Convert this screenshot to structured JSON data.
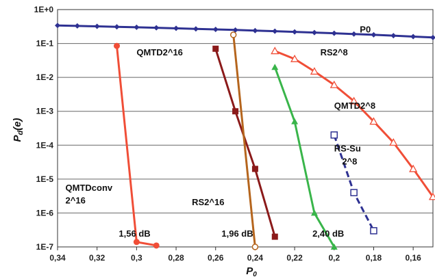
{
  "chart_data": {
    "type": "line",
    "xlabel": "P0",
    "ylabel": "Pd(e)",
    "xlim": [
      0.34,
      0.15
    ],
    "x_reversed": true,
    "ylim": [
      1e-07,
      1
    ],
    "yscale": "log",
    "grid": "horizontal",
    "x_ticks": [
      "0,34",
      "0,32",
      "0,3",
      "0,28",
      "0,26",
      "0,24",
      "0,22",
      "0,2",
      "0,18",
      "0,16"
    ],
    "x_tick_values": [
      0.34,
      0.32,
      0.3,
      0.28,
      0.26,
      0.24,
      0.22,
      0.2,
      0.18,
      0.16
    ],
    "y_ticks": [
      "1E+0",
      "1E-1",
      "1E-2",
      "1E-3",
      "1E-4",
      "1E-5",
      "1E-6",
      "1E-7"
    ],
    "y_tick_values": [
      1,
      0.1,
      0.01,
      0.001,
      0.0001,
      1e-05,
      1e-06,
      1e-07
    ],
    "series": [
      {
        "name": "P0",
        "color": "#2e3192",
        "marker": "diamond",
        "dash": "solid",
        "x": [
          0.34,
          0.33,
          0.32,
          0.31,
          0.3,
          0.29,
          0.28,
          0.27,
          0.26,
          0.25,
          0.24,
          0.23,
          0.22,
          0.21,
          0.2,
          0.19,
          0.18,
          0.17,
          0.16,
          0.15
        ],
        "y": [
          0.34,
          0.33,
          0.32,
          0.31,
          0.3,
          0.29,
          0.28,
          0.27,
          0.26,
          0.25,
          0.24,
          0.23,
          0.22,
          0.21,
          0.2,
          0.19,
          0.18,
          0.17,
          0.16,
          0.15
        ]
      },
      {
        "name": "QMTDconv 2^16",
        "color": "#f04e37",
        "marker": "circle",
        "dash": "solid",
        "x": [
          0.31,
          0.3,
          0.29
        ],
        "y": [
          0.085,
          1.4e-07,
          1.1e-07
        ]
      },
      {
        "name": "QMTD2^16",
        "color": "#8b1a1a",
        "marker": "square",
        "dash": "solid",
        "x": [
          0.26,
          0.25,
          0.24,
          0.23
        ],
        "y": [
          0.07,
          0.001,
          2e-05,
          2e-07
        ]
      },
      {
        "name": "RS2^16",
        "color": "#b5651d",
        "marker": "open-circle",
        "dash": "solid",
        "x": [
          0.251,
          0.24
        ],
        "y": [
          0.18,
          1e-07
        ]
      },
      {
        "name": "QMTD2^8",
        "color": "#39b54a",
        "marker": "triangle",
        "dash": "solid",
        "x": [
          0.23,
          0.22,
          0.21,
          0.2
        ],
        "y": [
          0.02,
          0.0005,
          1e-06,
          1e-07
        ]
      },
      {
        "name": "RS2^8",
        "color": "#f04e37",
        "marker": "open-triangle",
        "dash": "solid",
        "x": [
          0.23,
          0.22,
          0.21,
          0.2,
          0.19,
          0.18,
          0.17,
          0.16,
          0.15
        ],
        "y": [
          0.06,
          0.035,
          0.015,
          0.006,
          0.002,
          0.0005,
          0.00012,
          2e-05,
          3e-06
        ]
      },
      {
        "name": "RS-Su 2^8",
        "color": "#2e3192",
        "marker": "open-square",
        "dash": "dashed",
        "x": [
          0.2,
          0.19,
          0.18
        ],
        "y": [
          0.0002,
          4e-06,
          3e-07
        ]
      }
    ],
    "annotations": [
      {
        "text": "P0",
        "x": 0.187,
        "y": 0.21
      },
      {
        "text": "QMTD2^16",
        "x": 0.3,
        "y": 0.045
      },
      {
        "text": "RS2^8",
        "x": 0.207,
        "y": 0.045
      },
      {
        "text": "QMTD2^8",
        "x": 0.2,
        "y": 0.0012
      },
      {
        "text": "RS-Su",
        "x": 0.2,
        "y": 6.5e-05
      },
      {
        "text": "2^8",
        "x": 0.196,
        "y": 2.7e-05
      },
      {
        "text": "QMTDconv",
        "x": 0.336,
        "y": 4.5e-06
      },
      {
        "text": "2^16",
        "x": 0.336,
        "y": 1.9e-06
      },
      {
        "text": "RS2^16",
        "x": 0.272,
        "y": 1.7e-06
      },
      {
        "text": "1,56 dB",
        "x": 0.309,
        "y": 2e-07
      },
      {
        "text": "1,96 dB",
        "x": 0.257,
        "y": 2e-07
      },
      {
        "text": "2,40 dB",
        "x": 0.211,
        "y": 2e-07
      }
    ]
  }
}
